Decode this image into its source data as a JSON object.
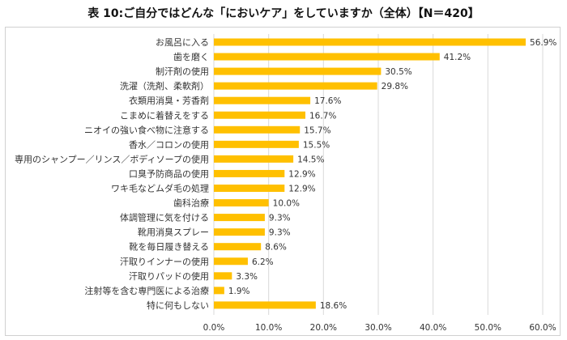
{
  "title": "表 10:ご自分ではどんな「においケア」をしていますか（全体）【N＝420】",
  "chart_data": {
    "type": "bar",
    "orientation": "horizontal",
    "title": "表 10:ご自分ではどんな「においケア」をしていますか（全体）【N＝420】",
    "categories": [
      "お風呂に入る",
      "歯を磨く",
      "制汗剤の使用",
      "洗濯（洗剤、柔軟剤）",
      "衣類用消臭・芳香剤",
      "こまめに着替えをする",
      "ニオイの強い食べ物に注意する",
      "香水／コロンの使用",
      "専用のシャンプー／リンス／ボディソープの使用",
      "口臭予防商品の使用",
      "ワキ毛などムダ毛の処理",
      "歯科治療",
      "体調管理に気を付ける",
      "靴用消臭スプレー",
      "靴を毎日履き替える",
      "汗取りインナーの使用",
      "汗取りパッドの使用",
      "注射等を含む専門医による治療",
      "特に何もしない"
    ],
    "values": [
      56.9,
      41.2,
      30.5,
      29.8,
      17.6,
      16.7,
      15.7,
      15.5,
      14.5,
      12.9,
      12.9,
      10.0,
      9.3,
      9.3,
      8.6,
      6.2,
      3.3,
      1.9,
      18.6
    ],
    "value_labels": [
      "56.9%",
      "41.2%",
      "30.5%",
      "29.8%",
      "17.6%",
      "16.7%",
      "15.7%",
      "15.5%",
      "14.5%",
      "12.9%",
      "12.9%",
      "10.0%",
      "9.3%",
      "9.3%",
      "8.6%",
      "6.2%",
      "3.3%",
      "1.9%",
      "18.6%"
    ],
    "xticks": [
      "0.0%",
      "10.0%",
      "20.0%",
      "30.0%",
      "40.0%",
      "50.0%",
      "60.0%"
    ],
    "xlim": [
      0,
      60
    ],
    "grid": true,
    "bar_color": "#FFC000",
    "grid_color": "#d9d9d9"
  }
}
